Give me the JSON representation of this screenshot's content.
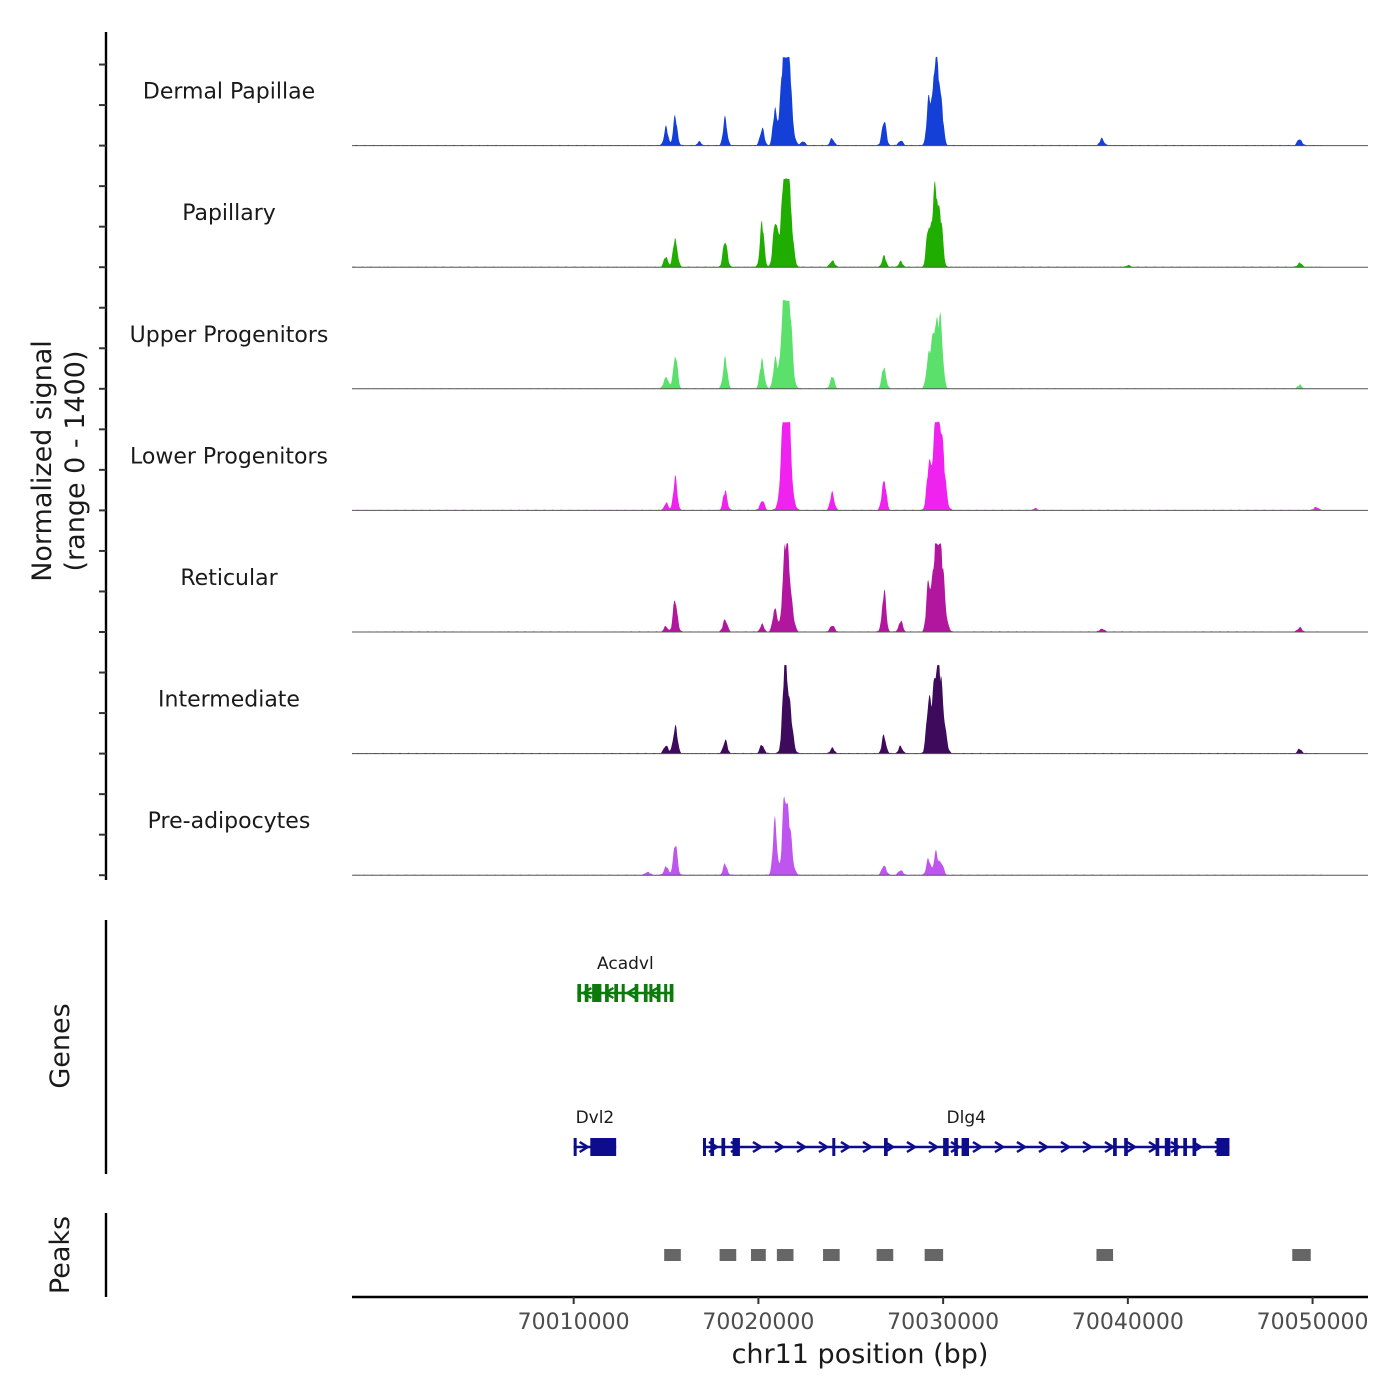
{
  "chart_data": {
    "type": "area",
    "title": "",
    "ylabel_line1": "Normalized signal",
    "ylabel_line2": "(range 0 - 1400)",
    "y_range": [
      0,
      1400
    ],
    "xlabel": "chr11 position (bp)",
    "xlim": [
      69998000,
      70053000
    ],
    "x_ticks": [
      70010000,
      70020000,
      70030000,
      70040000,
      70050000
    ],
    "x_tick_labels": [
      "70010000",
      "70020000",
      "70030000",
      "70040000",
      "70050000"
    ],
    "signal_range_bp": [
      69998000,
      70050500
    ],
    "tracks": [
      {
        "name": "Dermal Papillae",
        "color": "#1440d8",
        "peaks": [
          [
            70015000,
            0.2
          ],
          [
            70015500,
            0.32
          ],
          [
            70016800,
            0.04
          ],
          [
            70018200,
            0.3
          ],
          [
            70020200,
            0.2
          ],
          [
            70020900,
            0.4
          ],
          [
            70021400,
            0.88
          ],
          [
            70021600,
            0.95
          ],
          [
            70022400,
            0.05
          ],
          [
            70024000,
            0.08
          ],
          [
            70026800,
            0.3
          ],
          [
            70027700,
            0.06
          ],
          [
            70029200,
            0.4
          ],
          [
            70029600,
            1.0
          ],
          [
            70029900,
            0.35
          ],
          [
            70038600,
            0.08
          ],
          [
            70049300,
            0.08
          ]
        ]
      },
      {
        "name": "Papillary",
        "color": "#1fad00",
        "peaks": [
          [
            70015000,
            0.12
          ],
          [
            70015500,
            0.35
          ],
          [
            70018200,
            0.32
          ],
          [
            70020200,
            0.5
          ],
          [
            70020900,
            0.55
          ],
          [
            70021400,
            0.8
          ],
          [
            70021600,
            1.0
          ],
          [
            70024000,
            0.08
          ],
          [
            70026800,
            0.12
          ],
          [
            70027700,
            0.06
          ],
          [
            70029200,
            0.4
          ],
          [
            70029600,
            0.9
          ],
          [
            70029900,
            0.3
          ],
          [
            70040000,
            0.02
          ],
          [
            70049300,
            0.05
          ]
        ]
      },
      {
        "name": "Upper Progenitors",
        "color": "#5ae06b",
        "peaks": [
          [
            70015000,
            0.15
          ],
          [
            70015500,
            0.4
          ],
          [
            70018200,
            0.35
          ],
          [
            70020200,
            0.35
          ],
          [
            70020900,
            0.3
          ],
          [
            70021400,
            0.8
          ],
          [
            70021600,
            1.0
          ],
          [
            70024000,
            0.14
          ],
          [
            70026800,
            0.25
          ],
          [
            70029200,
            0.35
          ],
          [
            70029600,
            0.8
          ],
          [
            70029900,
            0.5
          ],
          [
            70049300,
            0.04
          ]
        ]
      },
      {
        "name": "Lower Progenitors",
        "color": "#ef22ef",
        "peaks": [
          [
            70015000,
            0.08
          ],
          [
            70015500,
            0.35
          ],
          [
            70018200,
            0.22
          ],
          [
            70020200,
            0.12
          ],
          [
            70021400,
            0.8
          ],
          [
            70021600,
            0.85
          ],
          [
            70024000,
            0.2
          ],
          [
            70026800,
            0.38
          ],
          [
            70029200,
            0.4
          ],
          [
            70029600,
            0.92
          ],
          [
            70029900,
            0.75
          ],
          [
            70035000,
            0.02
          ],
          [
            70050200,
            0.04
          ]
        ]
      },
      {
        "name": "Reticular",
        "color": "#b2169f",
        "peaks": [
          [
            70015000,
            0.06
          ],
          [
            70015500,
            0.38
          ],
          [
            70018200,
            0.15
          ],
          [
            70020200,
            0.08
          ],
          [
            70020900,
            0.3
          ],
          [
            70021400,
            0.55
          ],
          [
            70021600,
            0.8
          ],
          [
            70024000,
            0.08
          ],
          [
            70026800,
            0.45
          ],
          [
            70027700,
            0.12
          ],
          [
            70029200,
            0.5
          ],
          [
            70029600,
            0.85
          ],
          [
            70029900,
            0.75
          ],
          [
            70038600,
            0.04
          ],
          [
            70049300,
            0.05
          ]
        ]
      },
      {
        "name": "Intermediate",
        "color": "#3e0b5c",
        "peaks": [
          [
            70015000,
            0.1
          ],
          [
            70015500,
            0.33
          ],
          [
            70018200,
            0.15
          ],
          [
            70020200,
            0.1
          ],
          [
            70021400,
            0.6
          ],
          [
            70021600,
            0.72
          ],
          [
            70024000,
            0.06
          ],
          [
            70026800,
            0.2
          ],
          [
            70027700,
            0.08
          ],
          [
            70029200,
            0.55
          ],
          [
            70029600,
            0.85
          ],
          [
            70029900,
            0.62
          ],
          [
            70049300,
            0.05
          ]
        ]
      },
      {
        "name": "Pre-adipocytes",
        "color": "#bd55ee",
        "peaks": [
          [
            70014000,
            0.04
          ],
          [
            70015000,
            0.1
          ],
          [
            70015500,
            0.35
          ],
          [
            70018200,
            0.12
          ],
          [
            70020900,
            0.6
          ],
          [
            70021400,
            0.55
          ],
          [
            70021600,
            0.65
          ],
          [
            70026800,
            0.12
          ],
          [
            70027700,
            0.06
          ],
          [
            70029200,
            0.18
          ],
          [
            70029600,
            0.25
          ],
          [
            70029900,
            0.15
          ]
        ]
      }
    ],
    "genes_title": "Genes",
    "genes": [
      {
        "name": "Acadvl",
        "start": 70010200,
        "end": 70015400,
        "strand": "-",
        "color": "#0d7a0d",
        "row": 1,
        "exons": [
          [
            70010200,
            70010400
          ],
          [
            70010600,
            70010800
          ],
          [
            70011000,
            70011500
          ],
          [
            70011700,
            70011900
          ],
          [
            70012200,
            70012400
          ],
          [
            70012600,
            70012750
          ],
          [
            70013300,
            70013500
          ],
          [
            70013800,
            70014000
          ],
          [
            70014100,
            70014250
          ],
          [
            70014500,
            70014700
          ],
          [
            70014900,
            70015050
          ],
          [
            70015200,
            70015400
          ]
        ]
      },
      {
        "name": "Dvl2",
        "start": 70010000,
        "end": 70012300,
        "strand": "+",
        "color": "#0c0c8c",
        "row": 2,
        "exons": [
          [
            70010000,
            70010150
          ],
          [
            70010900,
            70012300
          ]
        ]
      },
      {
        "name": "Dlg4",
        "start": 70017000,
        "end": 70045500,
        "strand": "+",
        "color": "#0c0c8c",
        "row": 2,
        "exons": [
          [
            70017000,
            70017150
          ],
          [
            70017400,
            70017600
          ],
          [
            70018000,
            70018200
          ],
          [
            70018600,
            70019000
          ],
          [
            70024000,
            70024150
          ],
          [
            70026800,
            70027000
          ],
          [
            70030000,
            70030300
          ],
          [
            70030600,
            70030800
          ],
          [
            70031000,
            70031400
          ],
          [
            70039200,
            70039400
          ],
          [
            70039800,
            70040000
          ],
          [
            70041500,
            70041700
          ],
          [
            70042000,
            70042300
          ],
          [
            70042500,
            70042700
          ],
          [
            70043000,
            70043200
          ],
          [
            70043500,
            70043700
          ],
          [
            70044800,
            70045500
          ]
        ]
      }
    ],
    "peaks_title": "Peaks",
    "peak_regions": [
      [
        70014900,
        70015800
      ],
      [
        70017900,
        70018800
      ],
      [
        70019600,
        70020400
      ],
      [
        70021000,
        70021900
      ],
      [
        70023500,
        70024400
      ],
      [
        70026400,
        70027300
      ],
      [
        70029000,
        70030000
      ],
      [
        70038300,
        70039200
      ],
      [
        70048900,
        70049900
      ]
    ],
    "peak_color": "#666666"
  }
}
